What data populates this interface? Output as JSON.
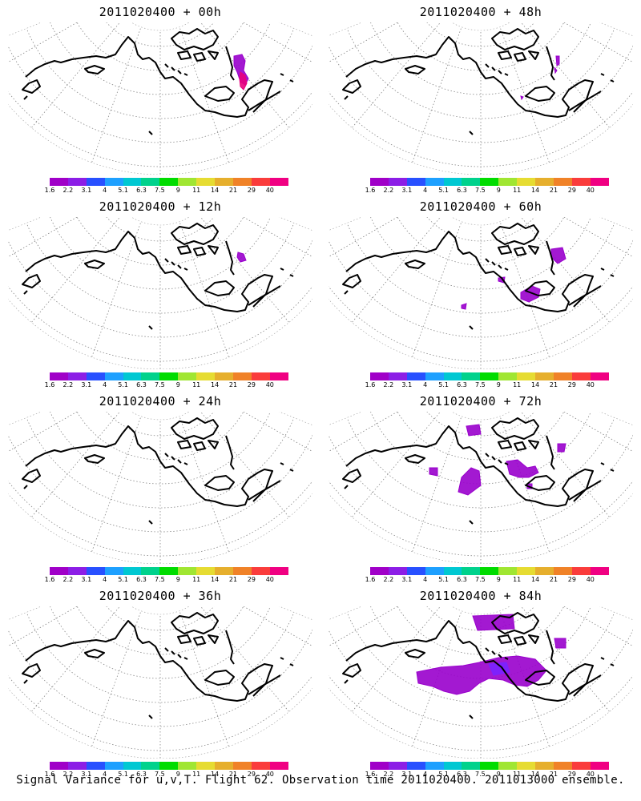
{
  "panels": [
    {
      "title": "2011020400 + 00h",
      "blobs": [
        {
          "shape": "p00",
          "color": "#9900cc"
        },
        {
          "shape": "p00b",
          "color": "#e8007c"
        }
      ]
    },
    {
      "title": "2011020400 + 48h",
      "blobs": [
        {
          "shape": "p48",
          "color": "#9900cc"
        }
      ]
    },
    {
      "title": "2011020400 + 12h",
      "blobs": [
        {
          "shape": "p12",
          "color": "#9900cc"
        }
      ]
    },
    {
      "title": "2011020400 + 60h",
      "blobs": [
        {
          "shape": "p60",
          "color": "#9900cc"
        }
      ]
    },
    {
      "title": "2011020400 + 24h",
      "blobs": []
    },
    {
      "title": "2011020400 + 72h",
      "blobs": [
        {
          "shape": "p72",
          "color": "#9900cc"
        }
      ]
    },
    {
      "title": "2011020400 + 36h",
      "blobs": []
    },
    {
      "title": "2011020400 + 84h",
      "blobs": [
        {
          "shape": "p84",
          "color": "#9900cc"
        },
        {
          "shape": "p84b",
          "color": "#7a22ff"
        }
      ]
    }
  ],
  "colorbar": {
    "colors": [
      "#a000c8",
      "#8c1ee6",
      "#2850ff",
      "#1ea0ff",
      "#00c8d2",
      "#00d28c",
      "#00dc00",
      "#a0e632",
      "#e6dc32",
      "#e6af2d",
      "#f08228",
      "#fa3c3c",
      "#f00082"
    ],
    "labels": [
      "1.6",
      "2.2",
      "3.1",
      "4",
      "5.1",
      "6.3",
      "7.5",
      "9",
      "11",
      "14",
      "21",
      "29",
      "40"
    ]
  },
  "footer": "Signal Variance for u,v,T. Flight 62. Observation time 2011020400. 2011013000 ensemble."
}
